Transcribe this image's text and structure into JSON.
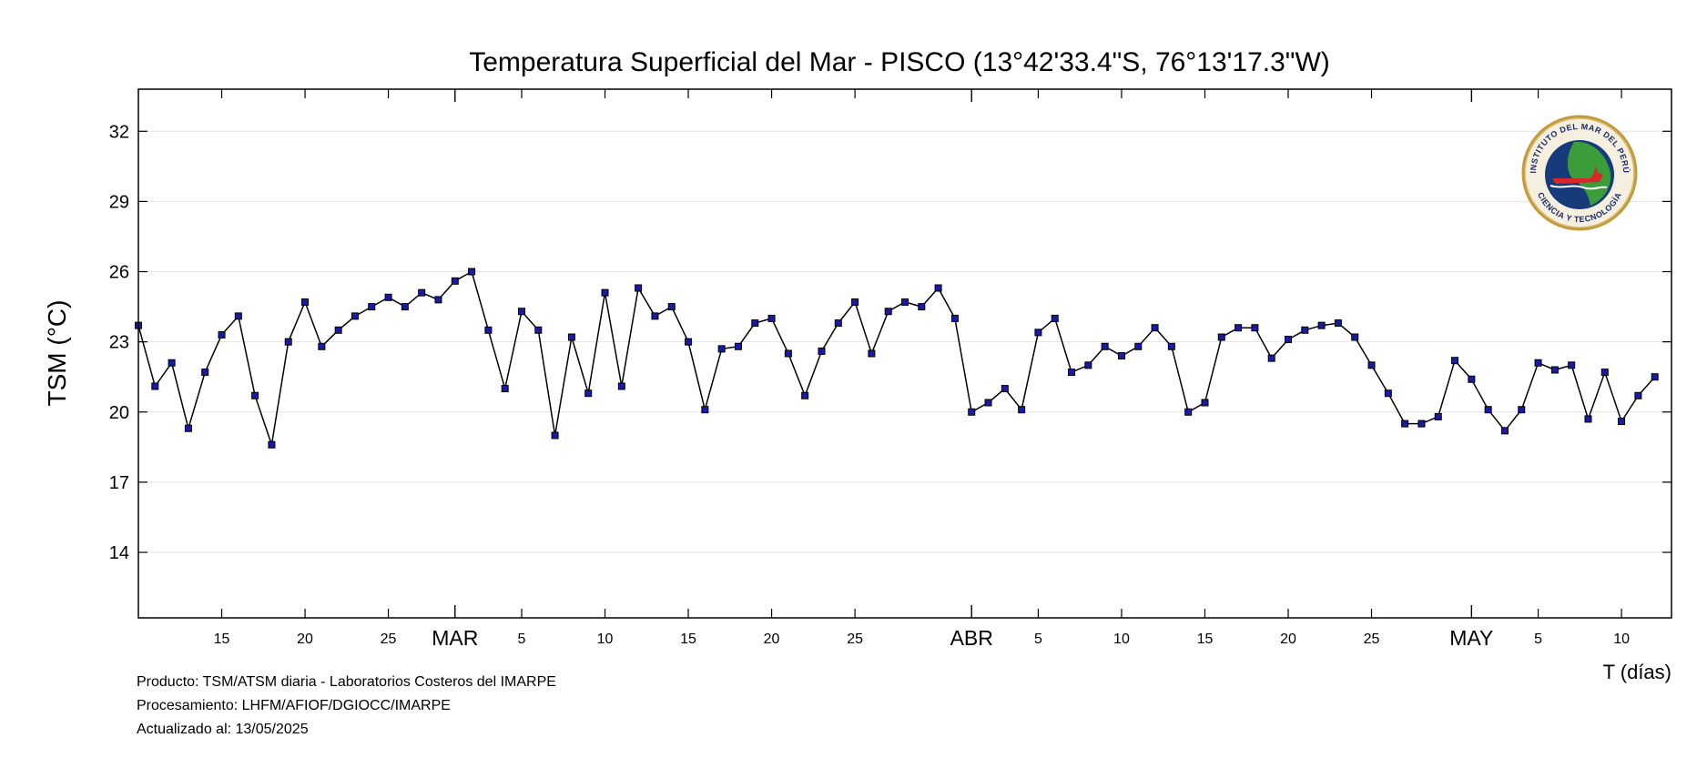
{
  "chart_data": {
    "type": "line",
    "title": "Temperatura Superficial del Mar - PISCO (13°42'33.4\"S, 76°13'17.3\"W)",
    "ylabel": "TSM (°C)",
    "xlabel": "T (días)",
    "ylim": [
      11.2,
      33.8
    ],
    "yticks": [
      14,
      17,
      20,
      23,
      26,
      29,
      32
    ],
    "xlim": [
      "2025-02-10",
      "2025-05-13"
    ],
    "x_start": "2025-02-10",
    "grid": true,
    "marker_color": "#1a1aa6",
    "line_color": "#000000",
    "day_ticks": [
      {
        "date": "2025-02-15",
        "label": "15"
      },
      {
        "date": "2025-02-20",
        "label": "20"
      },
      {
        "date": "2025-02-25",
        "label": "25"
      },
      {
        "date": "2025-03-05",
        "label": "5"
      },
      {
        "date": "2025-03-10",
        "label": "10"
      },
      {
        "date": "2025-03-15",
        "label": "15"
      },
      {
        "date": "2025-03-20",
        "label": "20"
      },
      {
        "date": "2025-03-25",
        "label": "25"
      },
      {
        "date": "2025-04-05",
        "label": "5"
      },
      {
        "date": "2025-04-10",
        "label": "10"
      },
      {
        "date": "2025-04-15",
        "label": "15"
      },
      {
        "date": "2025-04-20",
        "label": "20"
      },
      {
        "date": "2025-04-25",
        "label": "25"
      },
      {
        "date": "2025-05-05",
        "label": "5"
      },
      {
        "date": "2025-05-10",
        "label": "10"
      }
    ],
    "month_ticks": [
      {
        "date": "2025-03-01",
        "label": "MAR"
      },
      {
        "date": "2025-04-01",
        "label": "ABR"
      },
      {
        "date": "2025-05-01",
        "label": "MAY"
      }
    ],
    "series": [
      {
        "values": [
          23.7,
          21.1,
          22.1,
          19.3,
          21.7,
          23.3,
          24.1,
          20.7,
          18.6,
          23.0,
          24.7,
          22.8,
          23.5,
          24.1,
          24.5,
          24.9,
          24.5,
          25.1,
          24.8,
          25.6,
          26.0,
          23.5,
          21.0,
          24.3,
          23.5,
          19.0,
          23.2,
          20.8,
          25.1,
          21.1,
          25.3,
          24.1,
          24.5,
          23.0,
          20.1,
          22.7,
          22.8,
          23.8,
          24.0,
          22.5,
          20.7,
          22.6,
          23.8,
          24.7,
          22.5,
          24.3,
          24.7,
          24.5,
          25.3,
          24.0,
          20.0,
          20.4,
          21.0,
          20.1,
          23.4,
          24.0,
          21.7,
          22.0,
          22.8,
          22.4,
          22.8,
          23.6,
          22.8,
          20.0,
          20.4,
          23.2,
          23.6,
          23.6,
          22.3,
          23.1,
          23.5,
          23.7,
          23.8,
          23.2,
          22.0,
          20.8,
          19.5,
          19.5,
          19.8,
          22.2,
          21.4,
          20.1,
          19.2,
          20.1,
          22.1,
          21.8,
          22.0,
          19.7,
          21.7,
          19.6,
          20.7,
          21.5
        ]
      }
    ]
  },
  "footer": {
    "line1": "Producto: TSM/ATSM diaria - Laboratorios Costeros del IMARPE",
    "line2": "Procesamiento: LHFM/AFIOF/DGIOCC/IMARPE",
    "line3": "Actualizado al: 13/05/2025"
  },
  "logo": {
    "name": "imarpe-logo",
    "top_text": "INSTITUTO DEL MAR DEL PERÚ",
    "bottom_text": "CIENCIA Y TECNOLOGÍA"
  }
}
